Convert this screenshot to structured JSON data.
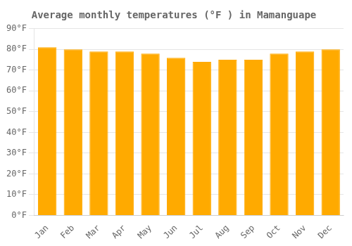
{
  "chart_data": {
    "type": "bar",
    "title": "Average monthly temperatures (°F ) in Mamanguape",
    "categories": [
      "Jan",
      "Feb",
      "Mar",
      "Apr",
      "May",
      "Jun",
      "Jul",
      "Aug",
      "Sep",
      "Oct",
      "Nov",
      "Dec"
    ],
    "values": [
      81,
      80,
      79,
      79,
      78,
      76,
      74,
      75,
      75,
      78,
      79,
      80
    ],
    "color": "#FFAA00",
    "ylim": [
      0,
      90
    ],
    "yticks": [
      {
        "value": 0,
        "label": "0°F"
      },
      {
        "value": 10,
        "label": "10°F"
      },
      {
        "value": 20,
        "label": "20°F"
      },
      {
        "value": 30,
        "label": "30°F"
      },
      {
        "value": 40,
        "label": "40°F"
      },
      {
        "value": 50,
        "label": "50°F"
      },
      {
        "value": 60,
        "label": "60°F"
      },
      {
        "value": 70,
        "label": "70°F"
      },
      {
        "value": 80,
        "label": "80°F"
      },
      {
        "value": 90,
        "label": "90°F"
      }
    ],
    "grid": true
  }
}
